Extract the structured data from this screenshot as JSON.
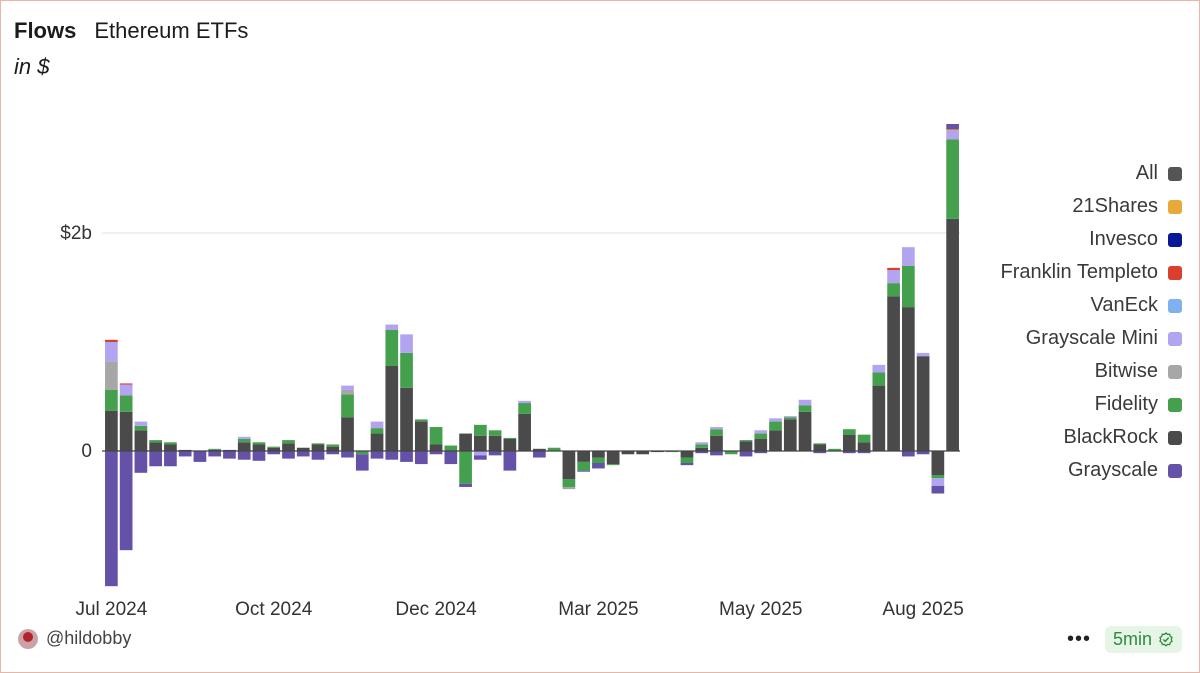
{
  "header": {
    "title": "Flows",
    "subtitle": "Ethereum ETFs",
    "unit": "in $"
  },
  "footer": {
    "handle": "@hildobby",
    "more": "•••",
    "refresh": "5min"
  },
  "colors": {
    "All": "#555555",
    "21Shares": "#e8a93a",
    "Invesco": "#0a1896",
    "Franklin Templeto": "#d93f2c",
    "VanEck": "#7fb1ee",
    "Grayscale Mini": "#b3a4f2",
    "Bitwise": "#a7a7a7",
    "Fidelity": "#45a04e",
    "BlackRock": "#4a4a4a",
    "Grayscale": "#6552a8"
  },
  "legend": [
    "All",
    "21Shares",
    "Invesco",
    "Franklin Templeto",
    "VanEck",
    "Grayscale Mini",
    "Bitwise",
    "Fidelity",
    "BlackRock",
    "Grayscale"
  ],
  "chart_data": {
    "type": "bar",
    "stacked": true,
    "x_tick_labels": [
      "Jul 2024",
      "Oct 2024",
      "Dec 2024",
      "Mar 2025",
      "May 2025",
      "Aug 2025"
    ],
    "x_tick_weeks": [
      0,
      11,
      22,
      33,
      44,
      55
    ],
    "y_ticks": [
      {
        "value": 0,
        "label": "0"
      },
      {
        "value": 2000000000,
        "label": "$2b"
      }
    ],
    "ylim": [
      -1250000000,
      3150000000
    ],
    "grid": true,
    "legend_position": "right",
    "series_order": [
      "BlackRock",
      "Fidelity",
      "Bitwise",
      "Grayscale Mini",
      "VanEck",
      "Franklin Templeto",
      "Invesco",
      "21Shares",
      "Grayscale"
    ],
    "weeks": [
      {
        "BlackRock": 370000000,
        "Fidelity": 190000000,
        "Bitwise": 260000000,
        "Grayscale Mini": 180000000,
        "VanEck": 0,
        "Franklin Templeto": 20000000,
        "Invesco": 0,
        "21Shares": 0,
        "Grayscale": -1240000000
      },
      {
        "BlackRock": 360000000,
        "Fidelity": 150000000,
        "Bitwise": 0,
        "Grayscale Mini": 100000000,
        "VanEck": 0,
        "Franklin Templeto": 10000000,
        "Invesco": 0,
        "21Shares": 0,
        "Grayscale": -910000000
      },
      {
        "BlackRock": 190000000,
        "Fidelity": 40000000,
        "Bitwise": 0,
        "Grayscale Mini": 40000000,
        "VanEck": 0,
        "Franklin Templeto": 0,
        "Invesco": 0,
        "21Shares": 0,
        "Grayscale": -200000000
      },
      {
        "BlackRock": 80000000,
        "Fidelity": 20000000,
        "Bitwise": 0,
        "Grayscale Mini": 0,
        "VanEck": 0,
        "Franklin Templeto": 0,
        "Invesco": 0,
        "21Shares": 0,
        "Grayscale": -140000000
      },
      {
        "BlackRock": 60000000,
        "Fidelity": 20000000,
        "Bitwise": 0,
        "Grayscale Mini": 0,
        "VanEck": 0,
        "Franklin Templeto": 0,
        "Invesco": 0,
        "21Shares": 0,
        "Grayscale": -140000000
      },
      {
        "BlackRock": 10000000,
        "Fidelity": 0,
        "Bitwise": 0,
        "Grayscale Mini": 0,
        "VanEck": 0,
        "Franklin Templeto": 0,
        "Invesco": 0,
        "21Shares": 0,
        "Grayscale": -50000000
      },
      {
        "BlackRock": 0,
        "Fidelity": 0,
        "Bitwise": 0,
        "Grayscale Mini": 0,
        "VanEck": 0,
        "Franklin Templeto": 0,
        "Invesco": 0,
        "21Shares": 0,
        "Grayscale": -100000000
      },
      {
        "BlackRock": 10000000,
        "Fidelity": 10000000,
        "Bitwise": 0,
        "Grayscale Mini": 0,
        "VanEck": 0,
        "Franklin Templeto": 0,
        "Invesco": 0,
        "21Shares": 0,
        "Grayscale": -50000000
      },
      {
        "BlackRock": 10000000,
        "Fidelity": 0,
        "Bitwise": 0,
        "Grayscale Mini": 0,
        "VanEck": 0,
        "Franklin Templeto": 0,
        "Invesco": 0,
        "21Shares": 0,
        "Grayscale": -70000000
      },
      {
        "BlackRock": 80000000,
        "Fidelity": 30000000,
        "Bitwise": 0,
        "Grayscale Mini": 20000000,
        "VanEck": 0,
        "Franklin Templeto": 0,
        "Invesco": 0,
        "21Shares": 0,
        "Grayscale": -80000000
      },
      {
        "BlackRock": 60000000,
        "Fidelity": 20000000,
        "Bitwise": 0,
        "Grayscale Mini": 0,
        "VanEck": 0,
        "Franklin Templeto": 0,
        "Invesco": 0,
        "21Shares": 0,
        "Grayscale": -90000000
      },
      {
        "BlackRock": 30000000,
        "Fidelity": 10000000,
        "Bitwise": 0,
        "Grayscale Mini": 0,
        "VanEck": 0,
        "Franklin Templeto": 0,
        "Invesco": 0,
        "21Shares": 0,
        "Grayscale": -30000000
      },
      {
        "BlackRock": 70000000,
        "Fidelity": 30000000,
        "Bitwise": 0,
        "Grayscale Mini": 0,
        "VanEck": 0,
        "Franklin Templeto": 0,
        "Invesco": 0,
        "21Shares": 0,
        "Grayscale": -70000000
      },
      {
        "BlackRock": 30000000,
        "Fidelity": 0,
        "Bitwise": 0,
        "Grayscale Mini": 0,
        "VanEck": 0,
        "Franklin Templeto": 0,
        "Invesco": 0,
        "21Shares": 0,
        "Grayscale": -50000000
      },
      {
        "BlackRock": 60000000,
        "Fidelity": 10000000,
        "Bitwise": 0,
        "Grayscale Mini": 0,
        "VanEck": 0,
        "Franklin Templeto": 0,
        "Invesco": 0,
        "21Shares": 0,
        "Grayscale": -80000000
      },
      {
        "BlackRock": 40000000,
        "Fidelity": 20000000,
        "Bitwise": 0,
        "Grayscale Mini": 0,
        "VanEck": 0,
        "Franklin Templeto": 0,
        "Invesco": 0,
        "21Shares": 0,
        "Grayscale": -30000000
      },
      {
        "BlackRock": 310000000,
        "Fidelity": 210000000,
        "Bitwise": 40000000,
        "Grayscale Mini": 40000000,
        "VanEck": 0,
        "Franklin Templeto": 0,
        "Invesco": 0,
        "21Shares": 0,
        "Grayscale": -60000000
      },
      {
        "BlackRock": 0,
        "Fidelity": -30000000,
        "Bitwise": 0,
        "Grayscale Mini": 0,
        "VanEck": 0,
        "Franklin Templeto": 0,
        "Invesco": 0,
        "21Shares": 0,
        "Grayscale": -150000000
      },
      {
        "BlackRock": 160000000,
        "Fidelity": 50000000,
        "Bitwise": 0,
        "Grayscale Mini": 60000000,
        "VanEck": 0,
        "Franklin Templeto": 0,
        "Invesco": 0,
        "21Shares": 0,
        "Grayscale": -70000000
      },
      {
        "BlackRock": 780000000,
        "Fidelity": 330000000,
        "Bitwise": 0,
        "Grayscale Mini": 50000000,
        "VanEck": 0,
        "Franklin Templeto": 0,
        "Invesco": 0,
        "21Shares": 0,
        "Grayscale": -80000000
      },
      {
        "BlackRock": 580000000,
        "Fidelity": 320000000,
        "Bitwise": 0,
        "Grayscale Mini": 170000000,
        "VanEck": 0,
        "Franklin Templeto": 0,
        "Invesco": 0,
        "21Shares": 0,
        "Grayscale": -100000000
      },
      {
        "BlackRock": 270000000,
        "Fidelity": 20000000,
        "Bitwise": 0,
        "Grayscale Mini": 0,
        "VanEck": 0,
        "Franklin Templeto": 0,
        "Invesco": 0,
        "21Shares": 0,
        "Grayscale": -120000000
      },
      {
        "BlackRock": 60000000,
        "Fidelity": 160000000,
        "Bitwise": 0,
        "Grayscale Mini": 0,
        "VanEck": 0,
        "Franklin Templeto": 0,
        "Invesco": 0,
        "21Shares": 0,
        "Grayscale": -30000000
      },
      {
        "BlackRock": 0,
        "Fidelity": 50000000,
        "Bitwise": 0,
        "Grayscale Mini": 0,
        "VanEck": 0,
        "Franklin Templeto": 0,
        "Invesco": 0,
        "21Shares": 0,
        "Grayscale": -120000000
      },
      {
        "BlackRock": 160000000,
        "Fidelity": -300000000,
        "Bitwise": 0,
        "Grayscale Mini": 0,
        "VanEck": 0,
        "Franklin Templeto": 0,
        "Invesco": 0,
        "21Shares": 0,
        "Grayscale": -30000000
      },
      {
        "BlackRock": 140000000,
        "Fidelity": 100000000,
        "Bitwise": 0,
        "Grayscale Mini": -40000000,
        "VanEck": 0,
        "Franklin Templeto": 0,
        "Invesco": 0,
        "21Shares": 0,
        "Grayscale": -40000000
      },
      {
        "BlackRock": 140000000,
        "Fidelity": 50000000,
        "Bitwise": 0,
        "Grayscale Mini": 0,
        "VanEck": 0,
        "Franklin Templeto": 0,
        "Invesco": 0,
        "21Shares": 0,
        "Grayscale": -40000000
      },
      {
        "BlackRock": 110000000,
        "Fidelity": 10000000,
        "Bitwise": 0,
        "Grayscale Mini": 0,
        "VanEck": 0,
        "Franklin Templeto": 0,
        "Invesco": 0,
        "21Shares": 0,
        "Grayscale": -180000000
      },
      {
        "BlackRock": 340000000,
        "Fidelity": 100000000,
        "Bitwise": 0,
        "Grayscale Mini": 20000000,
        "VanEck": 0,
        "Franklin Templeto": 0,
        "Invesco": 0,
        "21Shares": 0,
        "Grayscale": 0
      },
      {
        "BlackRock": 20000000,
        "Fidelity": 0,
        "Bitwise": 0,
        "Grayscale Mini": 0,
        "VanEck": 0,
        "Franklin Templeto": 0,
        "Invesco": 0,
        "21Shares": 0,
        "Grayscale": -60000000
      },
      {
        "BlackRock": 0,
        "Fidelity": 30000000,
        "Bitwise": 0,
        "Grayscale Mini": 0,
        "VanEck": 0,
        "Franklin Templeto": 0,
        "Invesco": 0,
        "21Shares": 0,
        "Grayscale": 0
      },
      {
        "BlackRock": -260000000,
        "Fidelity": -70000000,
        "Bitwise": -20000000,
        "Grayscale Mini": 0,
        "VanEck": 0,
        "Franklin Templeto": 0,
        "Invesco": 0,
        "21Shares": 0,
        "Grayscale": 0
      },
      {
        "BlackRock": -100000000,
        "Fidelity": -80000000,
        "Bitwise": 0,
        "Grayscale Mini": 0,
        "VanEck": 0,
        "Franklin Templeto": 0,
        "Invesco": 0,
        "21Shares": 0,
        "Grayscale": -10000000
      },
      {
        "BlackRock": -60000000,
        "Fidelity": -50000000,
        "Bitwise": 0,
        "Grayscale Mini": 0,
        "VanEck": 0,
        "Franklin Templeto": 0,
        "Invesco": 0,
        "21Shares": 0,
        "Grayscale": -50000000
      },
      {
        "BlackRock": -120000000,
        "Fidelity": -10000000,
        "Bitwise": 0,
        "Grayscale Mini": 0,
        "VanEck": 0,
        "Franklin Templeto": 0,
        "Invesco": 0,
        "21Shares": 0,
        "Grayscale": 0
      },
      {
        "BlackRock": -30000000,
        "Fidelity": 0,
        "Bitwise": 0,
        "Grayscale Mini": 0,
        "VanEck": 0,
        "Franklin Templeto": 0,
        "Invesco": 0,
        "21Shares": 0,
        "Grayscale": 0
      },
      {
        "BlackRock": -30000000,
        "Fidelity": 0,
        "Bitwise": 0,
        "Grayscale Mini": 0,
        "VanEck": 0,
        "Franklin Templeto": 0,
        "Invesco": 0,
        "21Shares": 0,
        "Grayscale": 0
      },
      {
        "BlackRock": -10000000,
        "Fidelity": 0,
        "Bitwise": 0,
        "Grayscale Mini": 0,
        "VanEck": 0,
        "Franklin Templeto": 0,
        "Invesco": 0,
        "21Shares": 0,
        "Grayscale": 0
      },
      {
        "BlackRock": 0,
        "Fidelity": -10000000,
        "Bitwise": 0,
        "Grayscale Mini": 0,
        "VanEck": 0,
        "Franklin Templeto": 0,
        "Invesco": 0,
        "21Shares": 0,
        "Grayscale": 0
      },
      {
        "BlackRock": -60000000,
        "Fidelity": -50000000,
        "Bitwise": 0,
        "Grayscale Mini": 0,
        "VanEck": 0,
        "Franklin Templeto": 0,
        "Invesco": 0,
        "21Shares": 0,
        "Grayscale": -20000000
      },
      {
        "BlackRock": 30000000,
        "Fidelity": 30000000,
        "Bitwise": 0,
        "Grayscale Mini": 20000000,
        "VanEck": 0,
        "Franklin Templeto": 0,
        "Invesco": 0,
        "21Shares": 0,
        "Grayscale": -20000000
      },
      {
        "BlackRock": 140000000,
        "Fidelity": 60000000,
        "Bitwise": 0,
        "Grayscale Mini": 20000000,
        "VanEck": 0,
        "Franklin Templeto": 0,
        "Invesco": 0,
        "21Shares": 0,
        "Grayscale": -40000000
      },
      {
        "BlackRock": 0,
        "Fidelity": -30000000,
        "Bitwise": 0,
        "Grayscale Mini": 0,
        "VanEck": 0,
        "Franklin Templeto": 0,
        "Invesco": 0,
        "21Shares": 0,
        "Grayscale": 0
      },
      {
        "BlackRock": 90000000,
        "Fidelity": 10000000,
        "Bitwise": 0,
        "Grayscale Mini": 0,
        "VanEck": 0,
        "Franklin Templeto": 0,
        "Invesco": 0,
        "21Shares": 0,
        "Grayscale": -50000000
      },
      {
        "BlackRock": 110000000,
        "Fidelity": 50000000,
        "Bitwise": 0,
        "Grayscale Mini": 30000000,
        "VanEck": 0,
        "Franklin Templeto": 0,
        "Invesco": 0,
        "21Shares": 0,
        "Grayscale": -20000000
      },
      {
        "BlackRock": 190000000,
        "Fidelity": 80000000,
        "Bitwise": 0,
        "Grayscale Mini": 30000000,
        "VanEck": 0,
        "Franklin Templeto": 0,
        "Invesco": 0,
        "21Shares": 0,
        "Grayscale": 0
      },
      {
        "BlackRock": 290000000,
        "Fidelity": 20000000,
        "Bitwise": 0,
        "Grayscale Mini": 10000000,
        "VanEck": 0,
        "Franklin Templeto": 0,
        "Invesco": 0,
        "21Shares": 0,
        "Grayscale": 0
      },
      {
        "BlackRock": 360000000,
        "Fidelity": 60000000,
        "Bitwise": 0,
        "Grayscale Mini": 50000000,
        "VanEck": 0,
        "Franklin Templeto": 0,
        "Invesco": 0,
        "21Shares": 0,
        "Grayscale": 0
      },
      {
        "BlackRock": 60000000,
        "Fidelity": 10000000,
        "Bitwise": 0,
        "Grayscale Mini": 0,
        "VanEck": 0,
        "Franklin Templeto": 0,
        "Invesco": 0,
        "21Shares": 0,
        "Grayscale": -20000000
      },
      {
        "BlackRock": 0,
        "Fidelity": 20000000,
        "Bitwise": 0,
        "Grayscale Mini": 0,
        "VanEck": 0,
        "Franklin Templeto": 0,
        "Invesco": 0,
        "21Shares": 0,
        "Grayscale": 0
      },
      {
        "BlackRock": 150000000,
        "Fidelity": 50000000,
        "Bitwise": 0,
        "Grayscale Mini": 0,
        "VanEck": 0,
        "Franklin Templeto": 0,
        "Invesco": 0,
        "21Shares": 0,
        "Grayscale": -20000000
      },
      {
        "BlackRock": 80000000,
        "Fidelity": 70000000,
        "Bitwise": 0,
        "Grayscale Mini": 0,
        "VanEck": 0,
        "Franklin Templeto": 0,
        "Invesco": 0,
        "21Shares": 0,
        "Grayscale": -20000000
      },
      {
        "BlackRock": 600000000,
        "Fidelity": 120000000,
        "Bitwise": 0,
        "Grayscale Mini": 70000000,
        "VanEck": 0,
        "Franklin Templeto": 0,
        "Invesco": 0,
        "21Shares": 0,
        "Grayscale": 0
      },
      {
        "BlackRock": 1420000000,
        "Fidelity": 120000000,
        "Bitwise": 0,
        "Grayscale Mini": 120000000,
        "VanEck": 0,
        "Franklin Templeto": 20000000,
        "Invesco": 0,
        "21Shares": 0,
        "Grayscale": 0
      },
      {
        "BlackRock": 1320000000,
        "Fidelity": 380000000,
        "Bitwise": 0,
        "Grayscale Mini": 170000000,
        "VanEck": 0,
        "Franklin Templeto": 0,
        "Invesco": 0,
        "21Shares": 0,
        "Grayscale": -50000000
      },
      {
        "BlackRock": 870000000,
        "Fidelity": 0,
        "Bitwise": 0,
        "Grayscale Mini": 30000000,
        "VanEck": 0,
        "Franklin Templeto": 0,
        "Invesco": 0,
        "21Shares": 0,
        "Grayscale": -30000000
      },
      {
        "BlackRock": -220000000,
        "Fidelity": -30000000,
        "Bitwise": 0,
        "Grayscale Mini": -70000000,
        "VanEck": 0,
        "Franklin Templeto": 0,
        "Invesco": 0,
        "21Shares": 0,
        "Grayscale": -70000000
      },
      {
        "BlackRock": 2130000000,
        "Fidelity": 730000000,
        "Bitwise": 0,
        "Grayscale Mini": 80000000,
        "VanEck": 0,
        "Franklin Templeto": 0,
        "Invesco": 0,
        "21Shares": 10000000,
        "Grayscale": 50000000
      }
    ]
  }
}
